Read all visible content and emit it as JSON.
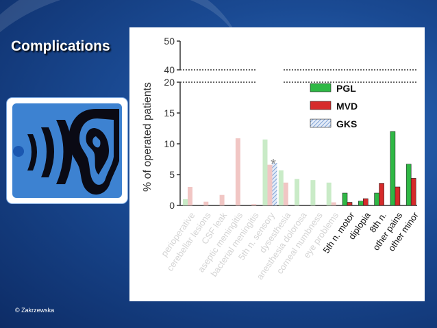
{
  "slide": {
    "title": "Complications",
    "copyright": "© Zakrzewska"
  },
  "icons": [
    "ear-icon",
    "sound-waves-icon"
  ],
  "colors": {
    "PGL": "#2fb845",
    "MVD": "#d62b2b",
    "GKS": "#7fa2d6",
    "faded_PGL": "#c9ebc7",
    "faded_MVD": "#f1c6c4"
  },
  "chart_data": {
    "type": "bar",
    "ylabel": "% of operated patients",
    "ylim": [
      0,
      50
    ],
    "yticks": [
      "0",
      "5",
      "10",
      "15",
      "20",
      "40",
      "50"
    ],
    "axis_break": "between 20 and 40 (dotted lines)",
    "legend_position": "top-right",
    "grid": false,
    "annotation": "*",
    "categories": [
      "perioperative",
      "cerebellar lesions",
      "CSF leak",
      "aseptic meningitis",
      "bacterial meningitis",
      "5th n. sensory",
      "dysesthesia",
      "anesthesia dolorosa",
      "corneal numbness",
      "eye problems",
      "5th n. motor",
      "diplopia",
      "8th n.",
      "other pains",
      "other minor"
    ],
    "faded_categories": [
      "perioperative",
      "cerebellar lesions",
      "CSF leak",
      "aseptic meningitis",
      "bacterial meningitis",
      "5th n. sensory",
      "dysesthesia",
      "anesthesia dolorosa",
      "corneal numbness",
      "eye problems"
    ],
    "series": [
      {
        "name": "PGL",
        "values": [
          1.0,
          0,
          0,
          0,
          0,
          10.7,
          5.7,
          4.3,
          4.1,
          3.7,
          2.0,
          0.7,
          2.0,
          12.0,
          6.7
        ]
      },
      {
        "name": "MVD",
        "values": [
          3.0,
          0.6,
          1.7,
          10.9,
          0.2,
          6.6,
          3.7,
          0,
          0,
          0.5,
          0.5,
          1.1,
          3.6,
          3.0,
          4.4
        ]
      },
      {
        "name": "GKS",
        "values": [
          0,
          0,
          0,
          0,
          0,
          6.9,
          0,
          0,
          0,
          0,
          0,
          0,
          0,
          0,
          0
        ]
      }
    ]
  }
}
